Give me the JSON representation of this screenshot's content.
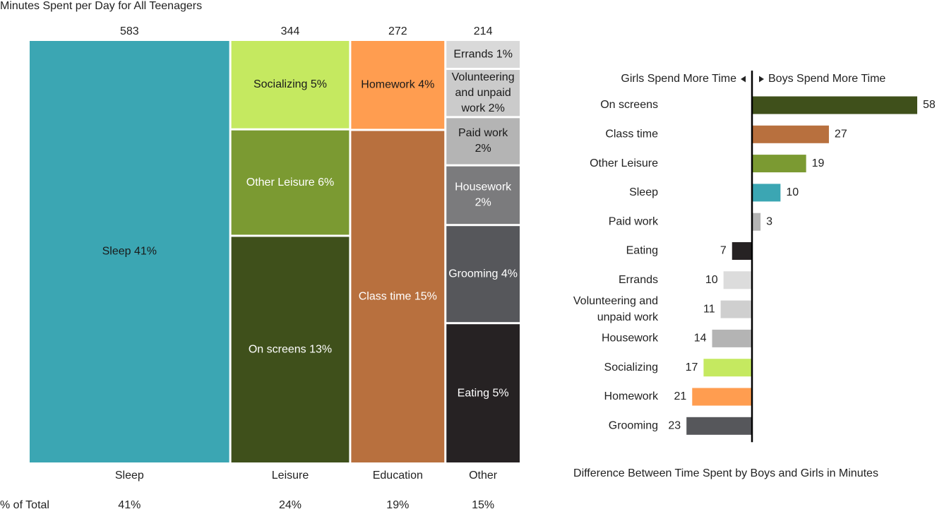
{
  "chart_data": [
    {
      "type": "mosaic",
      "title": "Minutes Spent per Day for All Teenagers",
      "footer_label": "% of Total",
      "columns": [
        {
          "name": "Sleep",
          "total": 583,
          "pct_label": "41%",
          "segments": [
            {
              "label": "Sleep 41%",
              "value": 583,
              "color": "#3BA6B3",
              "text_color": "#1a1a1a"
            }
          ]
        },
        {
          "name": "Leisure",
          "total": 344,
          "pct_label": "24%",
          "segments": [
            {
              "label": "Socializing 5%",
              "value": 72,
              "color": "#C5E960",
              "text_color": "#1a1a1a"
            },
            {
              "label": "Other Leisure 6%",
              "value": 86,
              "color": "#7B9A32",
              "text_color": "#ffffff"
            },
            {
              "label": "On screens 13%",
              "value": 186,
              "color": "#3F501B",
              "text_color": "#ffffff"
            }
          ]
        },
        {
          "name": "Education",
          "total": 272,
          "pct_label": "19%",
          "segments": [
            {
              "label": "Homework 4%",
              "value": 57,
              "color": "#FF9D50",
              "text_color": "#1a1a1a"
            },
            {
              "label": "Class time 15%",
              "value": 215,
              "color": "#B8703E",
              "text_color": "#ffffff"
            }
          ]
        },
        {
          "name": "Other",
          "total": 214,
          "pct_label": "15%",
          "segments": [
            {
              "label": "Errands 1%",
              "value": 14,
              "color": "#D9D9D9",
              "text_color": "#1a1a1a"
            },
            {
              "label": "Volunteering and unpaid work 2%",
              "value": 24,
              "color": "#CBCBCB",
              "text_color": "#1a1a1a"
            },
            {
              "label": "Paid work 2%",
              "value": 24,
              "color": "#B4B4B4",
              "text_color": "#1a1a1a"
            },
            {
              "label": "Housework 2%",
              "value": 30,
              "color": "#7B7B7D",
              "text_color": "#ffffff"
            },
            {
              "label": "Grooming 4%",
              "value": 50,
              "color": "#56575B",
              "text_color": "#ffffff"
            },
            {
              "label": "Eating 5%",
              "value": 72,
              "color": "#262223",
              "text_color": "#ffffff"
            }
          ]
        }
      ]
    },
    {
      "type": "diverging_bar",
      "xlabel": "Difference Between Time Spent by Boys and Girls in Minutes",
      "left_header": "Girls Spend More Time",
      "right_header": "Boys Spend More Time",
      "items": [
        {
          "category": "On screens",
          "value": 58,
          "color": "#3F501B"
        },
        {
          "category": "Class time",
          "value": 27,
          "color": "#B8703E"
        },
        {
          "category": "Other Leisure",
          "value": 19,
          "color": "#7B9A32"
        },
        {
          "category": "Sleep",
          "value": 10,
          "color": "#3BA6B3"
        },
        {
          "category": "Paid work",
          "value": 3,
          "color": "#B4B4B4"
        },
        {
          "category": "Eating",
          "value": -7,
          "color": "#262223"
        },
        {
          "category": "Errands",
          "value": -10,
          "color": "#DCDCDC"
        },
        {
          "category": "Volunteering and unpaid work",
          "value": -11,
          "color": "#CFCFCF"
        },
        {
          "category": "Housework",
          "value": -14,
          "color": "#B4B4B4"
        },
        {
          "category": "Socializing",
          "value": -17,
          "color": "#C5E960"
        },
        {
          "category": "Homework",
          "value": -21,
          "color": "#FF9D50"
        },
        {
          "category": "Grooming",
          "value": -23,
          "color": "#56575B"
        }
      ]
    }
  ]
}
